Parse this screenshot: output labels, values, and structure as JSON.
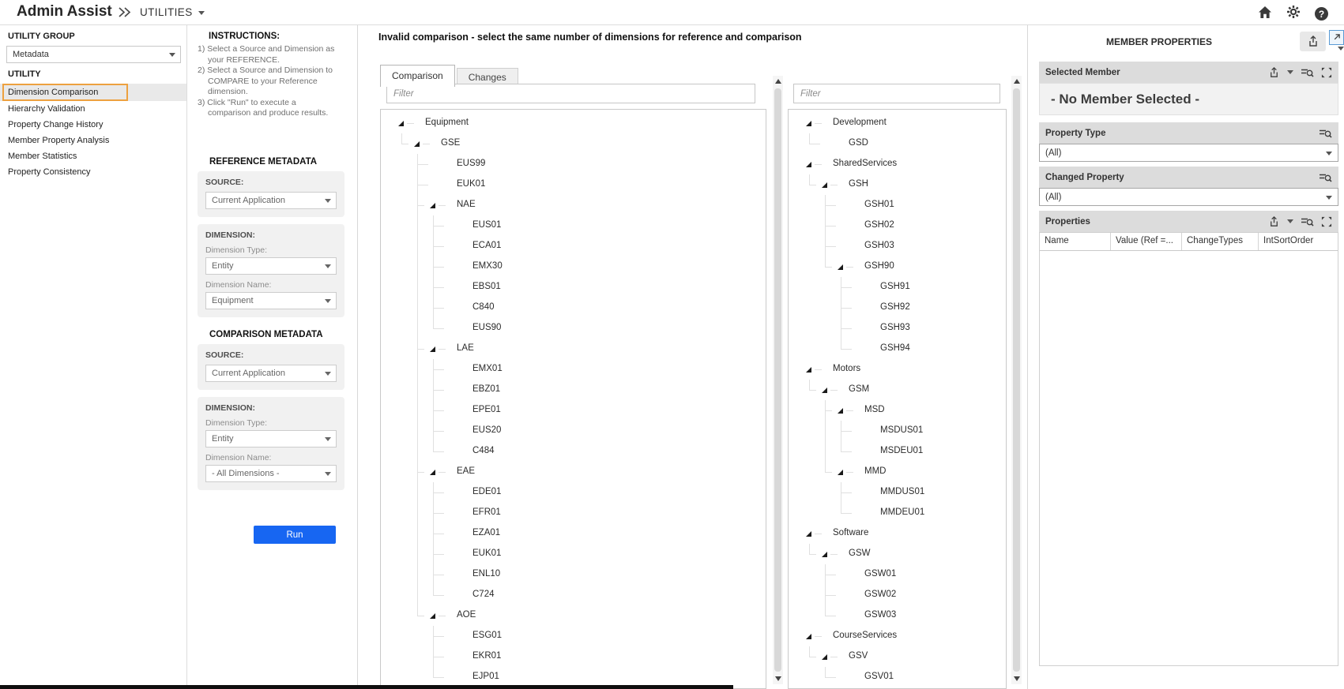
{
  "header": {
    "app_title": "Admin Assist",
    "nav_label": "UTILITIES"
  },
  "left_panel": {
    "group_label": "UTILITY GROUP",
    "group_value": "Metadata",
    "utility_label": "UTILITY",
    "items": [
      "Dimension Comparison",
      "Hierarchy Validation",
      "Property Change History",
      "Member Property Analysis",
      "Member Statistics",
      "Property Consistency"
    ],
    "selected_item": "Dimension Comparison"
  },
  "instructions": {
    "title": "INSTRUCTIONS:",
    "lines": [
      {
        "text": "1) Select a Source and Dimension as",
        "indent": false
      },
      {
        "text": "your REFERENCE.",
        "indent": true
      },
      {
        "text": "2) Select a Source and Dimension to",
        "indent": false
      },
      {
        "text": "COMPARE to your Reference",
        "indent": true
      },
      {
        "text": "dimension.",
        "indent": true
      },
      {
        "text": "3) Click \"Run\" to execute a",
        "indent": false
      },
      {
        "text": "comparison and produce results.",
        "indent": true
      }
    ]
  },
  "reference_metadata": {
    "title": "REFERENCE METADATA",
    "source_label": "SOURCE:",
    "source_value": "Current Application",
    "dimension_label": "DIMENSION:",
    "type_label": "Dimension Type:",
    "type_value": "Entity",
    "name_label": "Dimension Name:",
    "name_value": "Equipment"
  },
  "comparison_metadata": {
    "title": "COMPARISON METADATA",
    "source_label": "SOURCE:",
    "source_value": "Current Application",
    "dimension_label": "DIMENSION:",
    "type_label": "Dimension Type:",
    "type_value": "Entity",
    "name_label": "Dimension Name:",
    "name_value": "- All Dimensions -"
  },
  "run_label": "Run",
  "main": {
    "message": "Invalid comparison - select the same number of dimensions for reference and comparison",
    "tabs": [
      "Comparison",
      "Changes"
    ],
    "active_tab": "Comparison",
    "filter_placeholder": "Filter"
  },
  "reference_tree": [
    {
      "label": "Equipment",
      "depth": 0,
      "parent": true
    },
    {
      "label": "GSE",
      "depth": 1,
      "parent": true
    },
    {
      "label": "EUS99",
      "depth": 2,
      "parent": false
    },
    {
      "label": "EUK01",
      "depth": 2,
      "parent": false
    },
    {
      "label": "NAE",
      "depth": 2,
      "parent": true
    },
    {
      "label": "EUS01",
      "depth": 3,
      "parent": false
    },
    {
      "label": "ECA01",
      "depth": 3,
      "parent": false
    },
    {
      "label": "EMX30",
      "depth": 3,
      "parent": false
    },
    {
      "label": "EBS01",
      "depth": 3,
      "parent": false
    },
    {
      "label": "C840",
      "depth": 3,
      "parent": false
    },
    {
      "label": "EUS90",
      "depth": 3,
      "parent": false
    },
    {
      "label": "LAE",
      "depth": 2,
      "parent": true
    },
    {
      "label": "EMX01",
      "depth": 3,
      "parent": false
    },
    {
      "label": "EBZ01",
      "depth": 3,
      "parent": false
    },
    {
      "label": "EPE01",
      "depth": 3,
      "parent": false
    },
    {
      "label": "EUS20",
      "depth": 3,
      "parent": false
    },
    {
      "label": "C484",
      "depth": 3,
      "parent": false
    },
    {
      "label": "EAE",
      "depth": 2,
      "parent": true
    },
    {
      "label": "EDE01",
      "depth": 3,
      "parent": false
    },
    {
      "label": "EFR01",
      "depth": 3,
      "parent": false
    },
    {
      "label": "EZA01",
      "depth": 3,
      "parent": false
    },
    {
      "label": "EUK01",
      "depth": 3,
      "parent": false
    },
    {
      "label": "ENL10",
      "depth": 3,
      "parent": false
    },
    {
      "label": "C724",
      "depth": 3,
      "parent": false
    },
    {
      "label": "AOE",
      "depth": 2,
      "parent": true
    },
    {
      "label": "ESG01",
      "depth": 3,
      "parent": false
    },
    {
      "label": "EKR01",
      "depth": 3,
      "parent": false
    },
    {
      "label": "EJP01",
      "depth": 3,
      "parent": false
    }
  ],
  "comparison_tree": [
    {
      "label": "Development",
      "depth": 0,
      "parent": true
    },
    {
      "label": "GSD",
      "depth": 1,
      "parent": false
    },
    {
      "label": "SharedServices",
      "depth": 0,
      "parent": true
    },
    {
      "label": "GSH",
      "depth": 1,
      "parent": true
    },
    {
      "label": "GSH01",
      "depth": 2,
      "parent": false
    },
    {
      "label": "GSH02",
      "depth": 2,
      "parent": false
    },
    {
      "label": "GSH03",
      "depth": 2,
      "parent": false
    },
    {
      "label": "GSH90",
      "depth": 2,
      "parent": true
    },
    {
      "label": "GSH91",
      "depth": 3,
      "parent": false
    },
    {
      "label": "GSH92",
      "depth": 3,
      "parent": false
    },
    {
      "label": "GSH93",
      "depth": 3,
      "parent": false
    },
    {
      "label": "GSH94",
      "depth": 3,
      "parent": false
    },
    {
      "label": "Motors",
      "depth": 0,
      "parent": true
    },
    {
      "label": "GSM",
      "depth": 1,
      "parent": true
    },
    {
      "label": "MSD",
      "depth": 2,
      "parent": true
    },
    {
      "label": "MSDUS01",
      "depth": 3,
      "parent": false
    },
    {
      "label": "MSDEU01",
      "depth": 3,
      "parent": false
    },
    {
      "label": "MMD",
      "depth": 2,
      "parent": true
    },
    {
      "label": "MMDUS01",
      "depth": 3,
      "parent": false
    },
    {
      "label": "MMDEU01",
      "depth": 3,
      "parent": false
    },
    {
      "label": "Software",
      "depth": 0,
      "parent": true
    },
    {
      "label": "GSW",
      "depth": 1,
      "parent": true
    },
    {
      "label": "GSW01",
      "depth": 2,
      "parent": false
    },
    {
      "label": "GSW02",
      "depth": 2,
      "parent": false
    },
    {
      "label": "GSW03",
      "depth": 2,
      "parent": false
    },
    {
      "label": "CourseServices",
      "depth": 0,
      "parent": true
    },
    {
      "label": "GSV",
      "depth": 1,
      "parent": true
    },
    {
      "label": "GSV01",
      "depth": 2,
      "parent": false
    }
  ],
  "member_properties": {
    "title": "MEMBER PROPERTIES",
    "selected_member_label": "Selected Member",
    "no_member_text": "- No Member Selected -",
    "property_type_label": "Property Type",
    "property_type_value": "(All)",
    "changed_property_label": "Changed Property",
    "changed_property_value": "(All)",
    "properties_label": "Properties",
    "columns": [
      "Name",
      "Value (Ref =...",
      "ChangeTypes",
      "IntSortOrder"
    ]
  },
  "colors": {
    "accent_blue": "#1766f2",
    "highlight_orange": "#eda13f"
  }
}
